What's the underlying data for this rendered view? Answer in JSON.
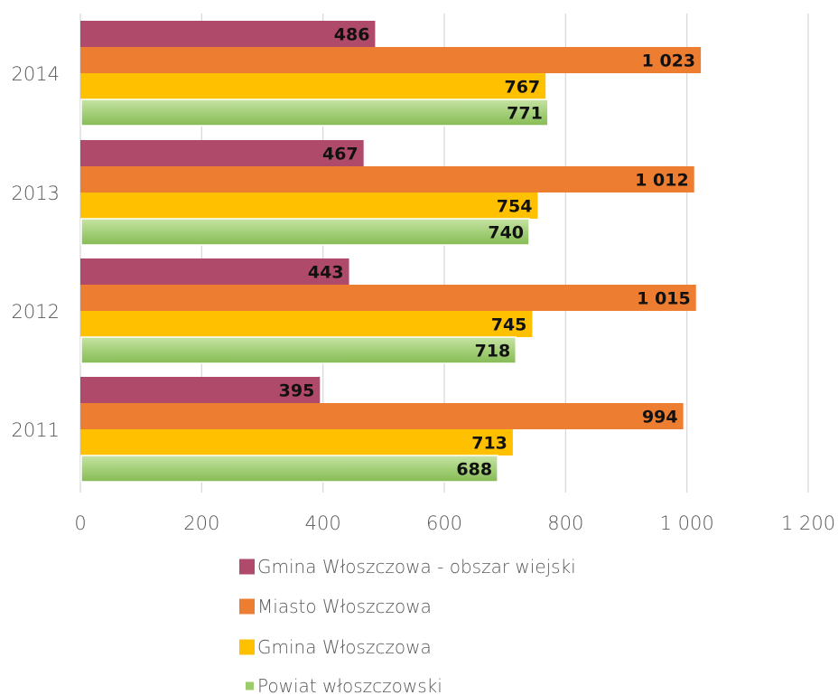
{
  "chart_data": {
    "type": "bar",
    "orientation": "horizontal",
    "categories": [
      "2011",
      "2012",
      "2013",
      "2014"
    ],
    "series": [
      {
        "name": "Gmina Włoszczowa - obszar wiejski",
        "values": [
          395,
          443,
          467,
          486
        ],
        "color": "#b04a6a",
        "labels": [
          "395",
          "443",
          "467",
          "486"
        ]
      },
      {
        "name": "Miasto Włoszczowa",
        "values": [
          994,
          1015,
          1012,
          1023
        ],
        "color": "#ed7d31",
        "labels": [
          "994",
          "1 015",
          "1 012",
          "1 023"
        ]
      },
      {
        "name": "Gmina Włoszczowa",
        "values": [
          713,
          745,
          754,
          767
        ],
        "color": "#ffc000",
        "labels": [
          "713",
          "745",
          "754",
          "767"
        ]
      },
      {
        "name": "Powiat włoszczowski",
        "values": [
          688,
          718,
          740,
          771
        ],
        "color": "#9ccb6c",
        "labels": [
          "688",
          "718",
          "740",
          "771"
        ]
      }
    ],
    "xlim": [
      0,
      1200
    ],
    "xticks": [
      0,
      200,
      400,
      600,
      800,
      1000,
      1200
    ],
    "xtick_labels": [
      "0",
      "200",
      "400",
      "600",
      "800",
      "1 000",
      "1 200"
    ],
    "grid": true,
    "legend_position": "bottom"
  }
}
